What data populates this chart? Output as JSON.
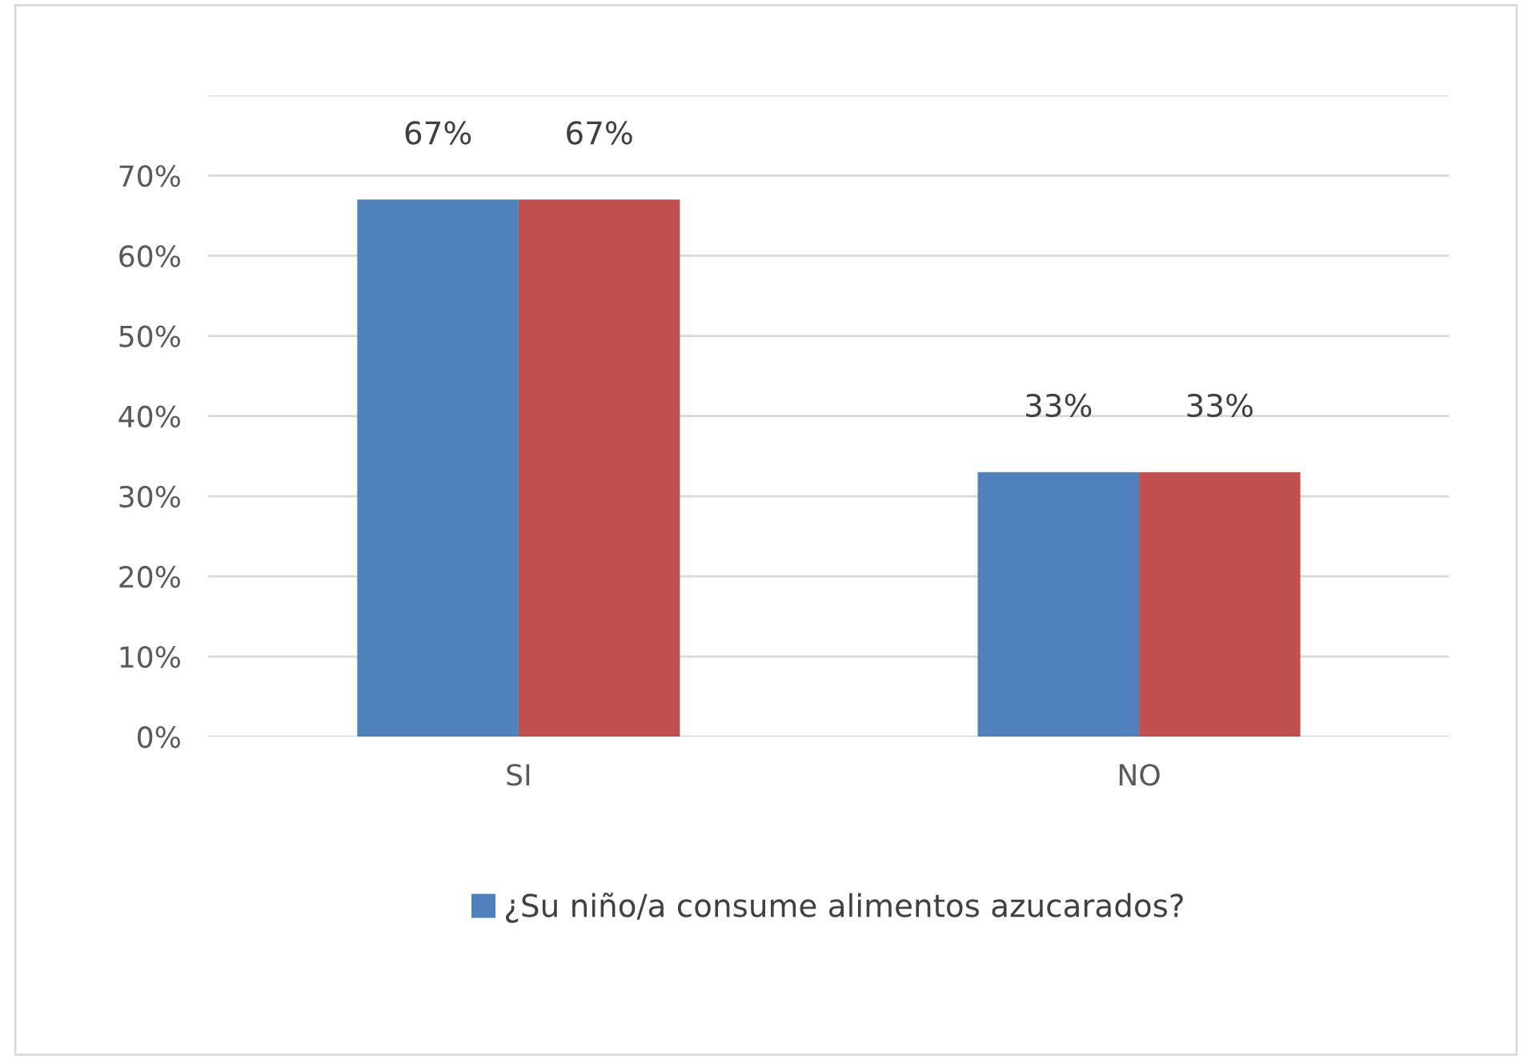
{
  "chart_data": {
    "type": "bar",
    "categories": [
      "SI",
      "NO"
    ],
    "series": [
      {
        "name": "¿Su niño/a consume alimentos azucarados?",
        "color": "#4f81bd",
        "values": [
          67,
          33
        ],
        "value_labels": [
          "67%",
          "33%"
        ]
      },
      {
        "color": "#c0504d",
        "values": [
          67,
          33
        ],
        "value_labels": [
          "67%",
          "33%"
        ]
      }
    ],
    "ylim": [
      0,
      80
    ],
    "yticks": [
      {
        "value": 0,
        "label": "0%"
      },
      {
        "value": 10,
        "label": "10%"
      },
      {
        "value": 20,
        "label": "20%"
      },
      {
        "value": 30,
        "label": "30%"
      },
      {
        "value": 40,
        "label": "40%"
      },
      {
        "value": 50,
        "label": "50%"
      },
      {
        "value": 60,
        "label": "60%"
      },
      {
        "value": 70,
        "label": "70%"
      },
      {
        "value": 80,
        "label": null
      }
    ],
    "grid": "y",
    "legend": "bottom"
  }
}
